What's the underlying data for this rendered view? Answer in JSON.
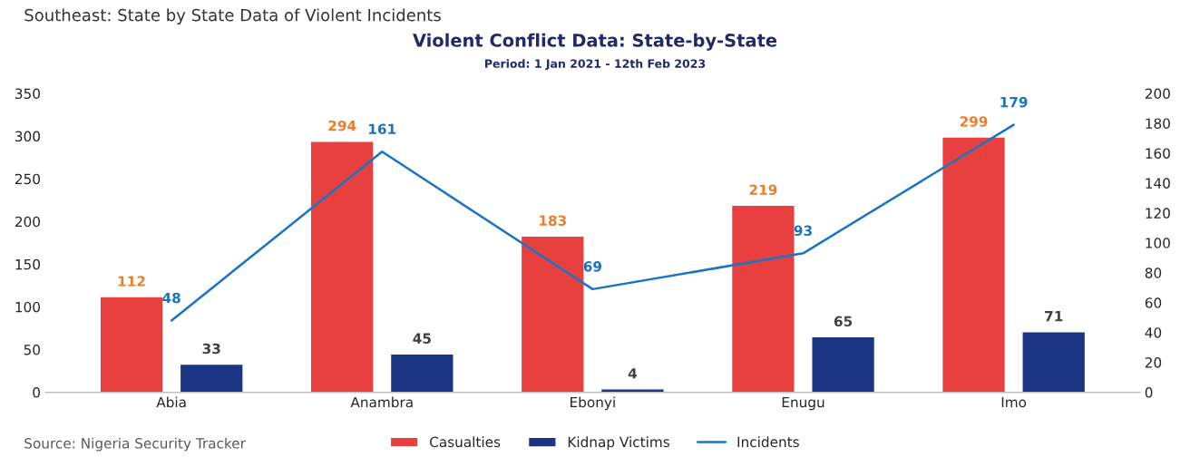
{
  "chart_data": {
    "type": "bar",
    "title": "Violent Conflict Data: State-by-State",
    "subtitle": "Period: 1 Jan 2021 - 12th Feb 2023",
    "annotations": [
      "Southeast: State by State Data of Violent Incidents",
      "Source: Nigeria Security Tracker"
    ],
    "categories": [
      "Abia",
      "Anambra",
      "Ebonyi",
      "Enugu",
      "Imo"
    ],
    "series": [
      {
        "name": "Casualties",
        "color": "#e8403e",
        "values": [
          112,
          294,
          183,
          219,
          299
        ]
      },
      {
        "name": "Kidnap Victims",
        "color": "#1b3484",
        "values": [
          33,
          45,
          4,
          65,
          71
        ]
      },
      {
        "name": "Incidents",
        "type": "line",
        "axis": "y2",
        "color": "#1a74c4",
        "values": [
          48,
          161,
          69,
          93,
          179
        ]
      }
    ],
    "ylim": [
      0,
      350
    ],
    "yticks": [
      0,
      50,
      100,
      150,
      200,
      250,
      300,
      350
    ],
    "y2lim": [
      0,
      200
    ],
    "y2ticks": [
      0,
      20,
      40,
      60,
      80,
      100,
      120,
      140,
      160,
      180,
      200
    ],
    "data_labels": true,
    "grid": false,
    "legend": "bottom"
  }
}
